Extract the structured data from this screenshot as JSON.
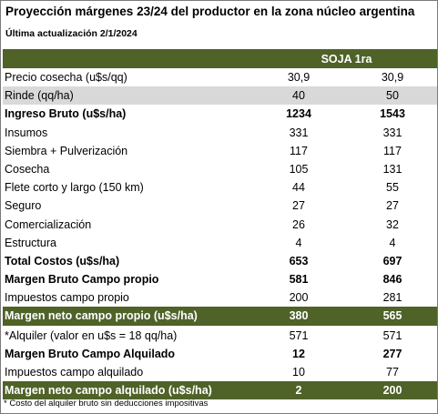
{
  "title": "Proyección márgenes 23/24  del productor en la zona núcleo argentina",
  "updated": "Última actualización 2/1/2024",
  "header": {
    "column_group": "SOJA 1ra"
  },
  "colors": {
    "header_green": "#4f6228",
    "gray_row": "#d9d9d9"
  },
  "rows": [
    {
      "label": "Precio cosecha (u$s/qq)",
      "a": "30,9",
      "b": "30,9",
      "style": "normal"
    },
    {
      "label": "Rinde (qq/ha)",
      "a": "40",
      "b": "50",
      "style": "gray"
    },
    {
      "label": "Ingreso Bruto (u$s/ha)",
      "a": "1234",
      "b": "1543",
      "style": "bold"
    },
    {
      "label": "Insumos",
      "a": "331",
      "b": "331",
      "style": "normal"
    },
    {
      "label": "Siembra + Pulverización",
      "a": "117",
      "b": "117",
      "style": "normal"
    },
    {
      "label": "Cosecha",
      "a": "105",
      "b": "131",
      "style": "normal"
    },
    {
      "label": "Flete corto y largo (150 km)",
      "a": "44",
      "b": "55",
      "style": "normal"
    },
    {
      "label": "Seguro",
      "a": "27",
      "b": "27",
      "style": "normal"
    },
    {
      "label": "Comercialización",
      "a": "26",
      "b": "32",
      "style": "normal"
    },
    {
      "label": "Estructura",
      "a": "4",
      "b": "4",
      "style": "normal"
    },
    {
      "label": "Total Costos (u$s/ha)",
      "a": "653",
      "b": "697",
      "style": "bold"
    },
    {
      "label": "Margen Bruto Campo propio",
      "a": "581",
      "b": "846",
      "style": "bold"
    },
    {
      "label": "Impuestos  campo propio",
      "a": "200",
      "b": "281",
      "style": "normal"
    },
    {
      "label": "Margen neto campo propio (u$s/ha)",
      "a": "380",
      "b": "565",
      "style": "green"
    },
    {
      "label": "*Alquiler (valor en u$s = 18 qq/ha)",
      "a": "571",
      "b": "571",
      "style": "normal"
    },
    {
      "label": "Margen Bruto Campo Alquilado",
      "a": "12",
      "b": "277",
      "style": "bold"
    },
    {
      "label": "Impuestos campo alquilado",
      "a": "10",
      "b": "77",
      "style": "normal"
    },
    {
      "label": "Margen neto campo alquilado (u$s/ha)",
      "a": "2",
      "b": "200",
      "style": "green"
    }
  ],
  "footnote": "* Costo del alquiler bruto sin deducciones impositivas"
}
